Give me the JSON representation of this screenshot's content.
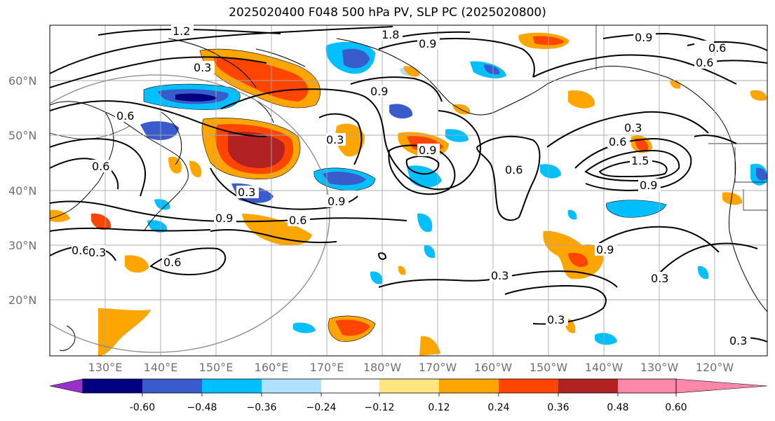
{
  "title": "2025020400 F048 500 hPa PV, SLP PC (2025020800)",
  "lat_labels": [
    "60°N",
    "50°N",
    "40°N",
    "30°N",
    "20°N"
  ],
  "lon_labels": [
    "130°E",
    "140°E",
    "150°E",
    "160°E",
    "170°E",
    "180°W",
    "170°W",
    "160°W",
    "150°W",
    "140°W",
    "130°W",
    "120°W"
  ],
  "colorbar": {
    "labels": [
      "-0.60",
      "−0.48",
      "−0.36",
      "−0.24",
      "−0.12",
      "0.12",
      "0.24",
      "0.36",
      "0.48",
      "0.60"
    ],
    "colors": [
      "#9932cc",
      "#000080",
      "#3a5bcc",
      "#00bfff",
      "#b0e2ff",
      "#ffffff",
      "#ffe680",
      "#ffa500",
      "#ff4500",
      "#b22222",
      "#ff88aa"
    ]
  },
  "contour_labels": [
    "1.2",
    "1.8",
    "0.9",
    "0.9",
    "0.6",
    "0.3",
    "0.9",
    "0.6",
    "0.3",
    "0.9",
    "0.6",
    "0.3",
    "0.9",
    "0.6",
    "1.5",
    "0.6",
    "0.9",
    "0.3",
    "0.9",
    "0.6",
    "0.9",
    "0.6",
    "0.6",
    "0.3",
    "0.3",
    "0.3",
    "0.3",
    "0.6",
    "0.3"
  ]
}
